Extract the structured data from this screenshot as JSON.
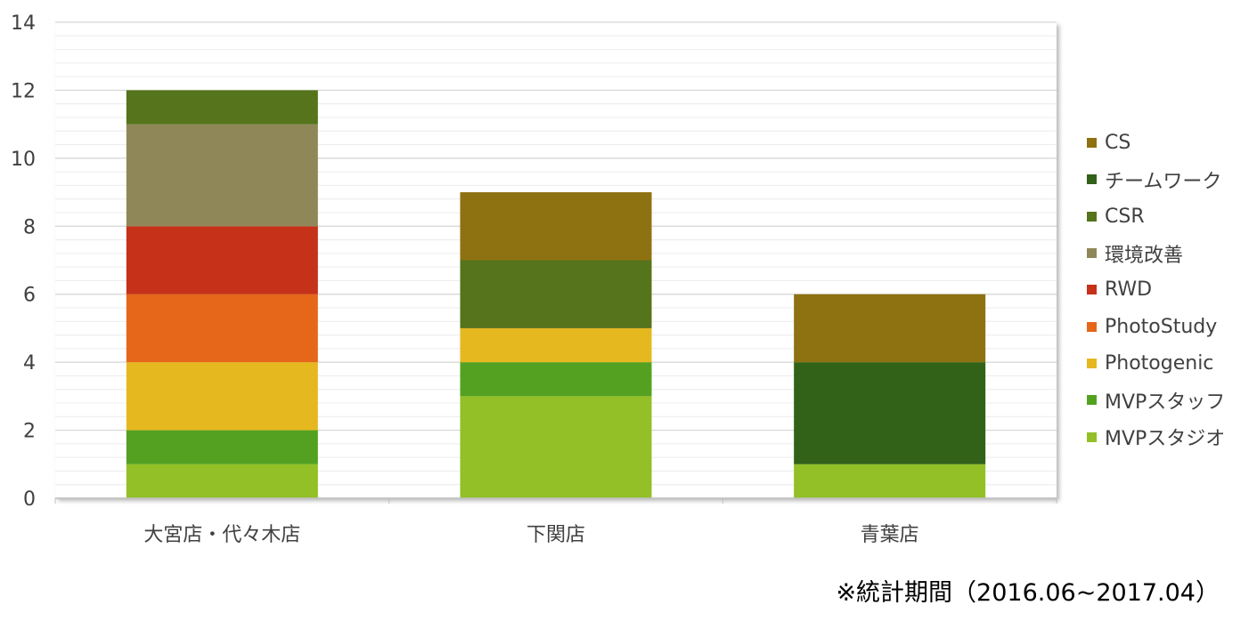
{
  "chart_data": {
    "type": "bar",
    "stacked": true,
    "categories": [
      "大宮店・代々木店",
      "下関店",
      "青葉店"
    ],
    "ylim": [
      0,
      14
    ],
    "yticks": [
      0,
      2,
      4,
      6,
      8,
      10,
      12,
      14
    ],
    "grid": true,
    "legend_position": "right",
    "series": [
      {
        "name": "MVPスタジオ",
        "color": "#92c026",
        "values": [
          1,
          3,
          1
        ]
      },
      {
        "name": "MVPスタッフ",
        "color": "#54a121",
        "values": [
          1,
          1,
          0
        ]
      },
      {
        "name": "Photogenic",
        "color": "#e5b820",
        "values": [
          2,
          1,
          0
        ]
      },
      {
        "name": "PhotoStudy",
        "color": "#e6661a",
        "values": [
          2,
          0,
          0
        ]
      },
      {
        "name": "RWD",
        "color": "#c53119",
        "values": [
          2,
          0,
          0
        ]
      },
      {
        "name": "環境改善",
        "color": "#8f8757",
        "values": [
          3,
          0,
          0
        ]
      },
      {
        "name": "CSR",
        "color": "#55741b",
        "values": [
          1,
          2,
          0
        ]
      },
      {
        "name": "チームワーク",
        "color": "#316218",
        "values": [
          0,
          0,
          3
        ]
      },
      {
        "name": "CS",
        "color": "#8e7110",
        "values": [
          0,
          2,
          2
        ]
      }
    ]
  },
  "legend_order": [
    "CS",
    "チームワーク",
    "CSR",
    "環境改善",
    "RWD",
    "PhotoStudy",
    "Photogenic",
    "MVPスタッフ",
    "MVPスタジオ"
  ],
  "footnote": "※統計期間（2016.06~2017.04）"
}
